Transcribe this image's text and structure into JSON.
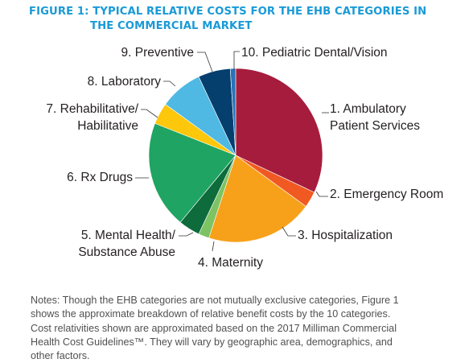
{
  "title": {
    "line1": "FIGURE 1: TYPICAL RELATIVE COSTS FOR THE EHB CATEGORIES IN",
    "line2": "THE COMMERCIAL MARKET"
  },
  "chart_data": {
    "type": "pie",
    "title": "FIGURE 1: TYPICAL RELATIVE COSTS FOR THE EHB CATEGORIES IN THE COMMERCIAL MARKET",
    "slices": [
      {
        "name": "1. Ambulatory Patient Services",
        "label_lines": [
          "1. Ambulatory",
          "Patient Services"
        ],
        "value": 32,
        "color": "#a61c3c"
      },
      {
        "name": "2. Emergency Room",
        "label_lines": [
          "2. Emergency Room"
        ],
        "value": 3,
        "color": "#f05a22"
      },
      {
        "name": "3. Hospitalization",
        "label_lines": [
          "3. Hospitalization"
        ],
        "value": 20,
        "color": "#f7a11a"
      },
      {
        "name": "4. Maternity",
        "label_lines": [
          "4. Maternity"
        ],
        "value": 2,
        "color": "#7dc363"
      },
      {
        "name": "5. Mental Health/ Substance Abuse",
        "label_lines": [
          "5. Mental Health/",
          "Substance Abuse"
        ],
        "value": 4,
        "color": "#0d6b3c"
      },
      {
        "name": "6. Rx Drugs",
        "label_lines": [
          "6. Rx Drugs"
        ],
        "value": 20,
        "color": "#1fa463"
      },
      {
        "name": "7. Rehabilitative/ Habilitative",
        "label_lines": [
          "7. Rehabilitative/",
          "Habilitative"
        ],
        "value": 4,
        "color": "#fdc70c"
      },
      {
        "name": "8. Laboratory",
        "label_lines": [
          "8. Laboratory"
        ],
        "value": 8,
        "color": "#4fb9e3"
      },
      {
        "name": "9. Preventive",
        "label_lines": [
          "9. Preventive"
        ],
        "value": 6,
        "color": "#053f6e"
      },
      {
        "name": "10. Pediatric Dental/Vision",
        "label_lines": [
          "10. Pediatric Dental/Vision"
        ],
        "value": 1,
        "color": "#2a72b8"
      }
    ]
  },
  "notes": {
    "lines": [
      "Notes: Though the EHB categories are not mutually exclusive categories, Figure 1",
      "shows the approximate breakdown of relative benefit costs by the 10 categories.",
      "Cost relativities shown are approximated based on the 2017 Milliman Commercial",
      "Health Cost Guidelines™. They will vary by geographic area, demographics, and",
      "other factors."
    ]
  }
}
